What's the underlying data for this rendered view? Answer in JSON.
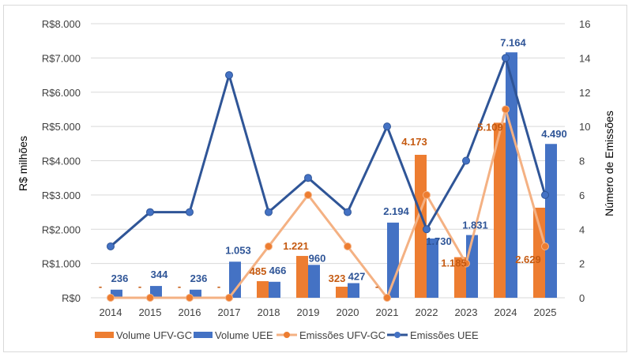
{
  "chart_data": {
    "type": "bar",
    "combo": "bar+line (dual axis)",
    "categories": [
      "2014",
      "2015",
      "2016",
      "2017",
      "2018",
      "2019",
      "2020",
      "2021",
      "2022",
      "2023",
      "2024",
      "2025"
    ],
    "series": [
      {
        "name": "Volume UFV-GC",
        "kind": "bar",
        "axis": "left",
        "color": "#ED7D31",
        "label_color": "#C55A11",
        "values": [
          0,
          0,
          0,
          0,
          485,
          1221,
          323,
          0,
          4173,
          1185,
          5109,
          2629
        ],
        "labels": [
          "-",
          "-",
          "-",
          "-",
          "485",
          "1.221",
          "323",
          "-",
          "4.173",
          "1.185",
          "5.109",
          "2.629"
        ]
      },
      {
        "name": "Volume UEE",
        "kind": "bar",
        "axis": "left",
        "color": "#4472C4",
        "label_color": "#2F5597",
        "values": [
          236,
          344,
          236,
          1053,
          466,
          960,
          427,
          2194,
          1730,
          1831,
          7164,
          4490
        ],
        "labels": [
          "236",
          "344",
          "236",
          "1.053",
          "466",
          "960",
          "427",
          "2.194",
          "1.730",
          "1.831",
          "7.164",
          "4.490"
        ]
      },
      {
        "name": "Emissões UFV-GC",
        "kind": "line",
        "axis": "right",
        "color": "#F4B183",
        "marker_color": "#ED7D31",
        "values": [
          0,
          0,
          0,
          0,
          3,
          6,
          3,
          0,
          6,
          2,
          11,
          3
        ]
      },
      {
        "name": "Emissões UEE",
        "kind": "line",
        "axis": "right",
        "color": "#2F5597",
        "marker_color": "#4472C4",
        "values": [
          3,
          5,
          5,
          13,
          5,
          7,
          5,
          10,
          4,
          8,
          14,
          6
        ]
      }
    ],
    "title": "",
    "xlabel": "",
    "ylabel": "R$ milhões",
    "y2label": "Número de Emissões",
    "ylim": [
      0,
      8000
    ],
    "y2lim": [
      0,
      16
    ],
    "yticks": [
      "R$0",
      "R$1.000",
      "R$2.000",
      "R$3.000",
      "R$4.000",
      "R$5.000",
      "R$6.000",
      "R$7.000",
      "R$8.000"
    ],
    "y2ticks": [
      "0",
      "2",
      "4",
      "6",
      "8",
      "10",
      "12",
      "14",
      "16"
    ],
    "grid": true,
    "legend": "bottom"
  }
}
